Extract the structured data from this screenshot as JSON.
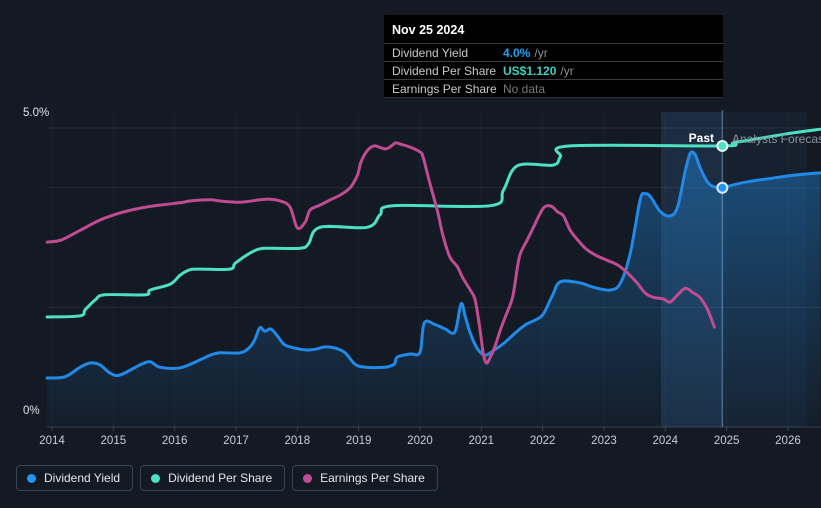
{
  "tooltip": {
    "date": "Nov 25 2024",
    "rows": [
      {
        "label": "Dividend Yield",
        "value": "4.0%",
        "suffix": "/yr",
        "value_color": "#1da1f2"
      },
      {
        "label": "Dividend Per Share",
        "value": "US$1.120",
        "suffix": "/yr",
        "value_color": "#3ed0c0"
      },
      {
        "label": "Earnings Per Share",
        "value": "No data",
        "suffix": "",
        "value_color": "#75797e"
      }
    ]
  },
  "annotations": {
    "past_label": "Past",
    "forecast_label": "Analysts Forecast"
  },
  "legend": [
    {
      "label": "Dividend Yield",
      "color": "#2196f3"
    },
    {
      "label": "Dividend Per Share",
      "color": "#4de0c3"
    },
    {
      "label": "Earnings Per Share",
      "color": "#c14b90"
    }
  ],
  "chart_data": {
    "type": "line",
    "title": "",
    "xlabel": "",
    "ylabel": "",
    "ylim": [
      0,
      5.0
    ],
    "y_axis_labels": {
      "top": "5.0%",
      "bottom": "0%"
    },
    "gridlines_pct": [
      5.0,
      4.0,
      2.0
    ],
    "x_ticks": [
      "2014",
      "2015",
      "2016",
      "2017",
      "2018",
      "2019",
      "2020",
      "2021",
      "2022",
      "2023",
      "2024",
      "2025",
      "2026"
    ],
    "x_tick_years": [
      2014,
      2015,
      2016,
      2017,
      2018,
      2019,
      2020,
      2021,
      2022,
      2023,
      2024,
      2025,
      2026
    ],
    "x_range": [
      2013.92,
      2026.53
    ],
    "past_highlight": [
      2023.93,
      2024.93
    ],
    "forecast_region": [
      2024.93,
      2026.3
    ],
    "divider_x": 2024.93,
    "legend_position": "bottom",
    "grid": true,
    "series": [
      {
        "name": "Dividend Per Share",
        "color": "#4de0c3",
        "units": "percent_equivalent",
        "points": [
          [
            2013.92,
            1.84
          ],
          [
            2014.46,
            1.86
          ],
          [
            2014.54,
            1.96
          ],
          [
            2014.7,
            2.12
          ],
          [
            2014.86,
            2.21
          ],
          [
            2015.52,
            2.21
          ],
          [
            2015.6,
            2.29
          ],
          [
            2015.93,
            2.39
          ],
          [
            2016.09,
            2.54
          ],
          [
            2016.25,
            2.63
          ],
          [
            2016.41,
            2.64
          ],
          [
            2016.9,
            2.64
          ],
          [
            2016.99,
            2.74
          ],
          [
            2017.23,
            2.91
          ],
          [
            2017.39,
            2.98
          ],
          [
            2017.56,
            2.99
          ],
          [
            2018.05,
            2.99
          ],
          [
            2018.18,
            3.06
          ],
          [
            2018.37,
            3.34
          ],
          [
            2019.14,
            3.34
          ],
          [
            2019.35,
            3.55
          ],
          [
            2019.56,
            3.7
          ],
          [
            2021.15,
            3.7
          ],
          [
            2021.36,
            3.96
          ],
          [
            2021.59,
            4.37
          ],
          [
            2022.17,
            4.38
          ],
          [
            2022.29,
            4.52
          ],
          [
            2022.45,
            4.7
          ],
          [
            2024.93,
            4.7
          ],
          [
            2025.11,
            4.75
          ],
          [
            2025.55,
            4.83
          ],
          [
            2026.09,
            4.92
          ],
          [
            2026.53,
            4.98
          ]
        ]
      },
      {
        "name": "Dividend Yield",
        "color": "#2189e8",
        "units": "percent",
        "area_fill": true,
        "points": [
          [
            2013.92,
            0.82
          ],
          [
            2014.21,
            0.84
          ],
          [
            2014.46,
            1.0
          ],
          [
            2014.62,
            1.07
          ],
          [
            2014.78,
            1.04
          ],
          [
            2014.95,
            0.9
          ],
          [
            2015.11,
            0.87
          ],
          [
            2015.44,
            1.04
          ],
          [
            2015.6,
            1.09
          ],
          [
            2015.76,
            1.0
          ],
          [
            2016.09,
            0.99
          ],
          [
            2016.41,
            1.12
          ],
          [
            2016.58,
            1.2
          ],
          [
            2016.74,
            1.24
          ],
          [
            2017.07,
            1.24
          ],
          [
            2017.23,
            1.34
          ],
          [
            2017.31,
            1.47
          ],
          [
            2017.39,
            1.66
          ],
          [
            2017.47,
            1.6
          ],
          [
            2017.56,
            1.64
          ],
          [
            2017.64,
            1.57
          ],
          [
            2017.72,
            1.46
          ],
          [
            2017.8,
            1.37
          ],
          [
            2017.96,
            1.32
          ],
          [
            2018.13,
            1.29
          ],
          [
            2018.29,
            1.3
          ],
          [
            2018.45,
            1.34
          ],
          [
            2018.62,
            1.32
          ],
          [
            2018.78,
            1.24
          ],
          [
            2018.94,
            1.05
          ],
          [
            2019.11,
            1.0
          ],
          [
            2019.43,
            1.0
          ],
          [
            2019.58,
            1.05
          ],
          [
            2019.63,
            1.17
          ],
          [
            2019.84,
            1.22
          ],
          [
            2020.0,
            1.25
          ],
          [
            2020.07,
            1.74
          ],
          [
            2020.25,
            1.71
          ],
          [
            2020.41,
            1.64
          ],
          [
            2020.57,
            1.59
          ],
          [
            2020.67,
            2.06
          ],
          [
            2020.74,
            1.84
          ],
          [
            2020.82,
            1.57
          ],
          [
            2020.93,
            1.32
          ],
          [
            2021.06,
            1.2
          ],
          [
            2021.23,
            1.3
          ],
          [
            2021.39,
            1.42
          ],
          [
            2021.55,
            1.57
          ],
          [
            2021.72,
            1.71
          ],
          [
            2021.88,
            1.79
          ],
          [
            2022.01,
            1.89
          ],
          [
            2022.16,
            2.2
          ],
          [
            2022.29,
            2.43
          ],
          [
            2022.61,
            2.41
          ],
          [
            2022.82,
            2.34
          ],
          [
            2023.1,
            2.29
          ],
          [
            2023.27,
            2.41
          ],
          [
            2023.43,
            2.91
          ],
          [
            2023.59,
            3.8
          ],
          [
            2023.67,
            3.9
          ],
          [
            2023.76,
            3.85
          ],
          [
            2023.92,
            3.6
          ],
          [
            2024.08,
            3.53
          ],
          [
            2024.2,
            3.68
          ],
          [
            2024.33,
            4.3
          ],
          [
            2024.41,
            4.58
          ],
          [
            2024.49,
            4.55
          ],
          [
            2024.57,
            4.33
          ],
          [
            2024.7,
            4.08
          ],
          [
            2024.82,
            4.01
          ],
          [
            2024.93,
            4.0
          ],
          [
            2025.11,
            4.05
          ],
          [
            2025.34,
            4.1
          ],
          [
            2025.67,
            4.15
          ],
          [
            2026.09,
            4.21
          ],
          [
            2026.53,
            4.25
          ]
        ]
      },
      {
        "name": "Earnings Per Share",
        "color": "#c14b90",
        "units": "percent_equivalent",
        "points": [
          [
            2013.92,
            3.09
          ],
          [
            2014.16,
            3.13
          ],
          [
            2014.46,
            3.29
          ],
          [
            2014.78,
            3.46
          ],
          [
            2015.11,
            3.58
          ],
          [
            2015.44,
            3.66
          ],
          [
            2015.76,
            3.71
          ],
          [
            2016.09,
            3.75
          ],
          [
            2016.25,
            3.78
          ],
          [
            2016.58,
            3.8
          ],
          [
            2016.74,
            3.78
          ],
          [
            2017.07,
            3.76
          ],
          [
            2017.39,
            3.8
          ],
          [
            2017.56,
            3.81
          ],
          [
            2017.72,
            3.78
          ],
          [
            2017.88,
            3.68
          ],
          [
            2018.0,
            3.33
          ],
          [
            2018.13,
            3.43
          ],
          [
            2018.21,
            3.63
          ],
          [
            2018.37,
            3.71
          ],
          [
            2018.54,
            3.8
          ],
          [
            2018.7,
            3.88
          ],
          [
            2018.86,
            4.0
          ],
          [
            2018.98,
            4.21
          ],
          [
            2019.03,
            4.41
          ],
          [
            2019.11,
            4.58
          ],
          [
            2019.19,
            4.67
          ],
          [
            2019.27,
            4.7
          ],
          [
            2019.43,
            4.65
          ],
          [
            2019.51,
            4.68
          ],
          [
            2019.6,
            4.75
          ],
          [
            2019.68,
            4.73
          ],
          [
            2019.84,
            4.68
          ],
          [
            2020.0,
            4.6
          ],
          [
            2020.05,
            4.52
          ],
          [
            2020.16,
            4.08
          ],
          [
            2020.28,
            3.63
          ],
          [
            2020.38,
            3.18
          ],
          [
            2020.49,
            2.84
          ],
          [
            2020.61,
            2.68
          ],
          [
            2020.7,
            2.49
          ],
          [
            2020.82,
            2.29
          ],
          [
            2020.9,
            2.12
          ],
          [
            2020.98,
            1.62
          ],
          [
            2021.03,
            1.25
          ],
          [
            2021.08,
            1.07
          ],
          [
            2021.15,
            1.17
          ],
          [
            2021.23,
            1.37
          ],
          [
            2021.31,
            1.62
          ],
          [
            2021.39,
            1.84
          ],
          [
            2021.51,
            2.17
          ],
          [
            2021.59,
            2.68
          ],
          [
            2021.64,
            2.91
          ],
          [
            2021.75,
            3.13
          ],
          [
            2021.85,
            3.34
          ],
          [
            2021.93,
            3.51
          ],
          [
            2022.01,
            3.66
          ],
          [
            2022.08,
            3.7
          ],
          [
            2022.16,
            3.68
          ],
          [
            2022.24,
            3.6
          ],
          [
            2022.34,
            3.53
          ],
          [
            2022.45,
            3.29
          ],
          [
            2022.61,
            3.08
          ],
          [
            2022.73,
            2.96
          ],
          [
            2022.89,
            2.86
          ],
          [
            2023.05,
            2.79
          ],
          [
            2023.22,
            2.71
          ],
          [
            2023.38,
            2.58
          ],
          [
            2023.54,
            2.41
          ],
          [
            2023.67,
            2.24
          ],
          [
            2023.8,
            2.17
          ],
          [
            2023.97,
            2.14
          ],
          [
            2024.08,
            2.09
          ],
          [
            2024.21,
            2.22
          ],
          [
            2024.33,
            2.32
          ],
          [
            2024.46,
            2.24
          ],
          [
            2024.57,
            2.16
          ],
          [
            2024.69,
            1.96
          ],
          [
            2024.8,
            1.67
          ]
        ]
      }
    ],
    "markers": [
      {
        "series": "Dividend Per Share",
        "x": 2024.93,
        "y": 4.7,
        "color": "#4de0c3",
        "ring": "#e6f7f1"
      },
      {
        "series": "Dividend Yield",
        "x": 2024.93,
        "y": 4.0,
        "color": "#2196f3",
        "ring": "#dcebfa"
      }
    ],
    "colors": {
      "background": "#141a24",
      "grid": "rgba(255,255,255,0.08)",
      "axis": "#39434f",
      "tick_label": "#c9ced6",
      "highlight_band": "rgba(77,150,215,0.16)",
      "forecast_band": "rgba(77,150,215,0.055)",
      "divider": "rgba(125,170,210,0.5)",
      "area_top": "rgba(33,150,243,0.42)",
      "area_bottom": "rgba(33,150,243,0.03)"
    }
  }
}
